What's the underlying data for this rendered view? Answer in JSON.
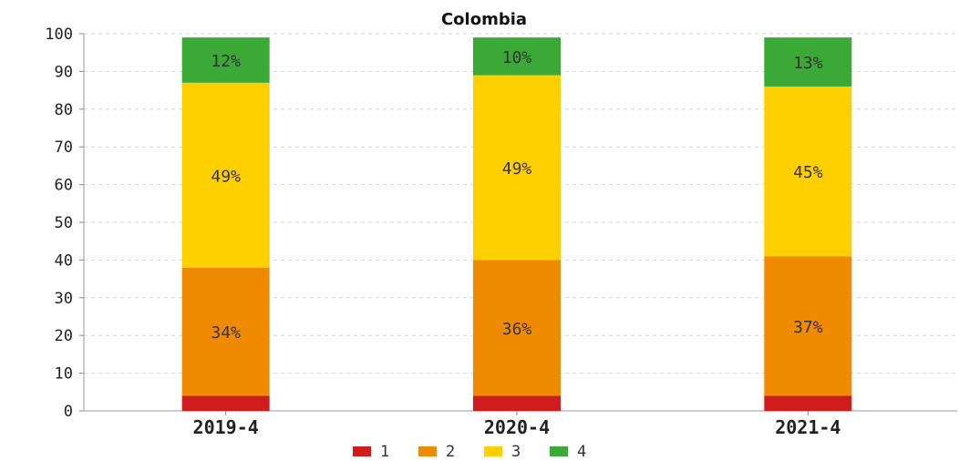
{
  "chart_data": {
    "type": "bar",
    "stacked": true,
    "title": "Colombia",
    "categories": [
      "2019-4",
      "2020-4",
      "2021-4"
    ],
    "series": [
      {
        "name": "1",
        "color": "#d01c1c",
        "values": [
          4,
          4,
          4
        ],
        "labels": [
          "",
          "",
          ""
        ]
      },
      {
        "name": "2",
        "color": "#f08a00",
        "values": [
          34,
          36,
          37
        ],
        "labels": [
          "34%",
          "36%",
          "37%"
        ]
      },
      {
        "name": "3",
        "color": "#ffd000",
        "values": [
          49,
          49,
          45
        ],
        "labels": [
          "49%",
          "49%",
          "45%"
        ]
      },
      {
        "name": "4",
        "color": "#3aa935",
        "values": [
          12,
          10,
          13
        ],
        "labels": [
          "12%",
          "10%",
          "13%"
        ]
      }
    ],
    "ylim": [
      0,
      100
    ],
    "yticks": [
      "0",
      "10",
      "20",
      "30",
      "40",
      "50",
      "60",
      "70",
      "80",
      "90",
      "100"
    ],
    "grid": true,
    "legend": "bottom"
  }
}
